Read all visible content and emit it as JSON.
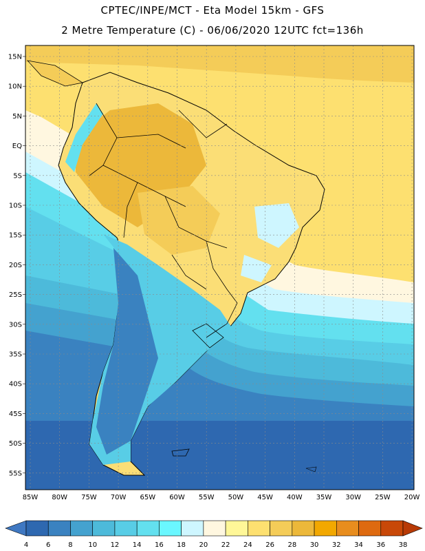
{
  "header": {
    "line1": "CPTEC/INPE/MCT -  Eta Model 15km - GFS",
    "line2": "2 Metre Temperature (C) - 06/06/2020 12UTC fct=136h"
  },
  "map": {
    "lat_labels": [
      "15N",
      "10N",
      "5N",
      "EQ",
      "5S",
      "10S",
      "15S",
      "20S",
      "25S",
      "30S",
      "35S",
      "40S",
      "45S",
      "50S",
      "55S"
    ],
    "lon_labels": [
      "85W",
      "80W",
      "75W",
      "70W",
      "65W",
      "60W",
      "55W",
      "50W",
      "45W",
      "40W",
      "35W",
      "30W",
      "25W",
      "20W"
    ]
  },
  "legend": {
    "tick_labels": [
      "4",
      "6",
      "8",
      "10",
      "12",
      "14",
      "16",
      "18",
      "20",
      "22",
      "24",
      "26",
      "28",
      "30",
      "32",
      "34",
      "36",
      "38"
    ],
    "colors": [
      "#2e68b0",
      "#3a82c0",
      "#44a2cf",
      "#4dbada",
      "#58cde6",
      "#63e0ef",
      "#6af7ff",
      "#cef6ff",
      "#fff7e0",
      "#fff798",
      "#fde070",
      "#f4cc58",
      "#ecb83a",
      "#f2a800",
      "#e88d1e",
      "#de6a10",
      "#c84808"
    ],
    "low_color": "#3f78c2",
    "high_color": "#b83a06"
  }
}
